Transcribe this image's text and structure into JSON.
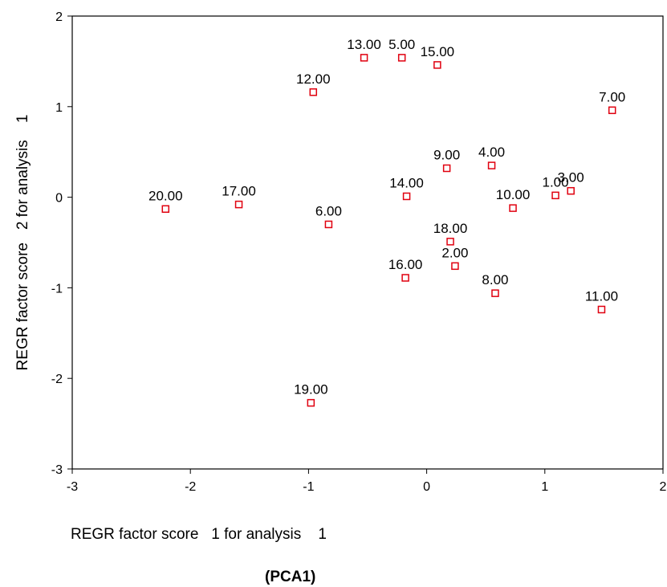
{
  "chart_data": {
    "type": "scatter",
    "xlabel": "REGR factor score   1 for analysis    1",
    "ylabel": "REGR factor score   2 for analysis    1",
    "subtitle": "(PCA1)",
    "xlim": [
      -3,
      2
    ],
    "ylim": [
      -3,
      2
    ],
    "xticks": [
      -3,
      -2,
      -1,
      0,
      1,
      2
    ],
    "yticks": [
      -3,
      -2,
      -1,
      0,
      1,
      2
    ],
    "grid": false,
    "marker_color": "#e0000f",
    "points": [
      {
        "label": "1.00",
        "x": 1.09,
        "y": 0.02
      },
      {
        "label": "2.00",
        "x": 0.24,
        "y": -0.76
      },
      {
        "label": "3.00",
        "x": 1.22,
        "y": 0.07
      },
      {
        "label": "4.00",
        "x": 0.55,
        "y": 0.35
      },
      {
        "label": "5.00",
        "x": -0.21,
        "y": 1.54
      },
      {
        "label": "6.00",
        "x": -0.83,
        "y": -0.3
      },
      {
        "label": "7.00",
        "x": 1.57,
        "y": 0.96
      },
      {
        "label": "8.00",
        "x": 0.58,
        "y": -1.06
      },
      {
        "label": "9.00",
        "x": 0.17,
        "y": 0.32
      },
      {
        "label": "10.00",
        "x": 0.73,
        "y": -0.12
      },
      {
        "label": "11.00",
        "x": 1.48,
        "y": -1.24
      },
      {
        "label": "12.00",
        "x": -0.96,
        "y": 1.16
      },
      {
        "label": "13.00",
        "x": -0.53,
        "y": 1.54
      },
      {
        "label": "14.00",
        "x": -0.17,
        "y": 0.01
      },
      {
        "label": "15.00",
        "x": 0.09,
        "y": 1.46
      },
      {
        "label": "16.00",
        "x": -0.18,
        "y": -0.89
      },
      {
        "label": "17.00",
        "x": -1.59,
        "y": -0.08
      },
      {
        "label": "18.00",
        "x": 0.2,
        "y": -0.49
      },
      {
        "label": "19.00",
        "x": -0.98,
        "y": -2.27
      },
      {
        "label": "20.00",
        "x": -2.21,
        "y": -0.13
      }
    ]
  }
}
